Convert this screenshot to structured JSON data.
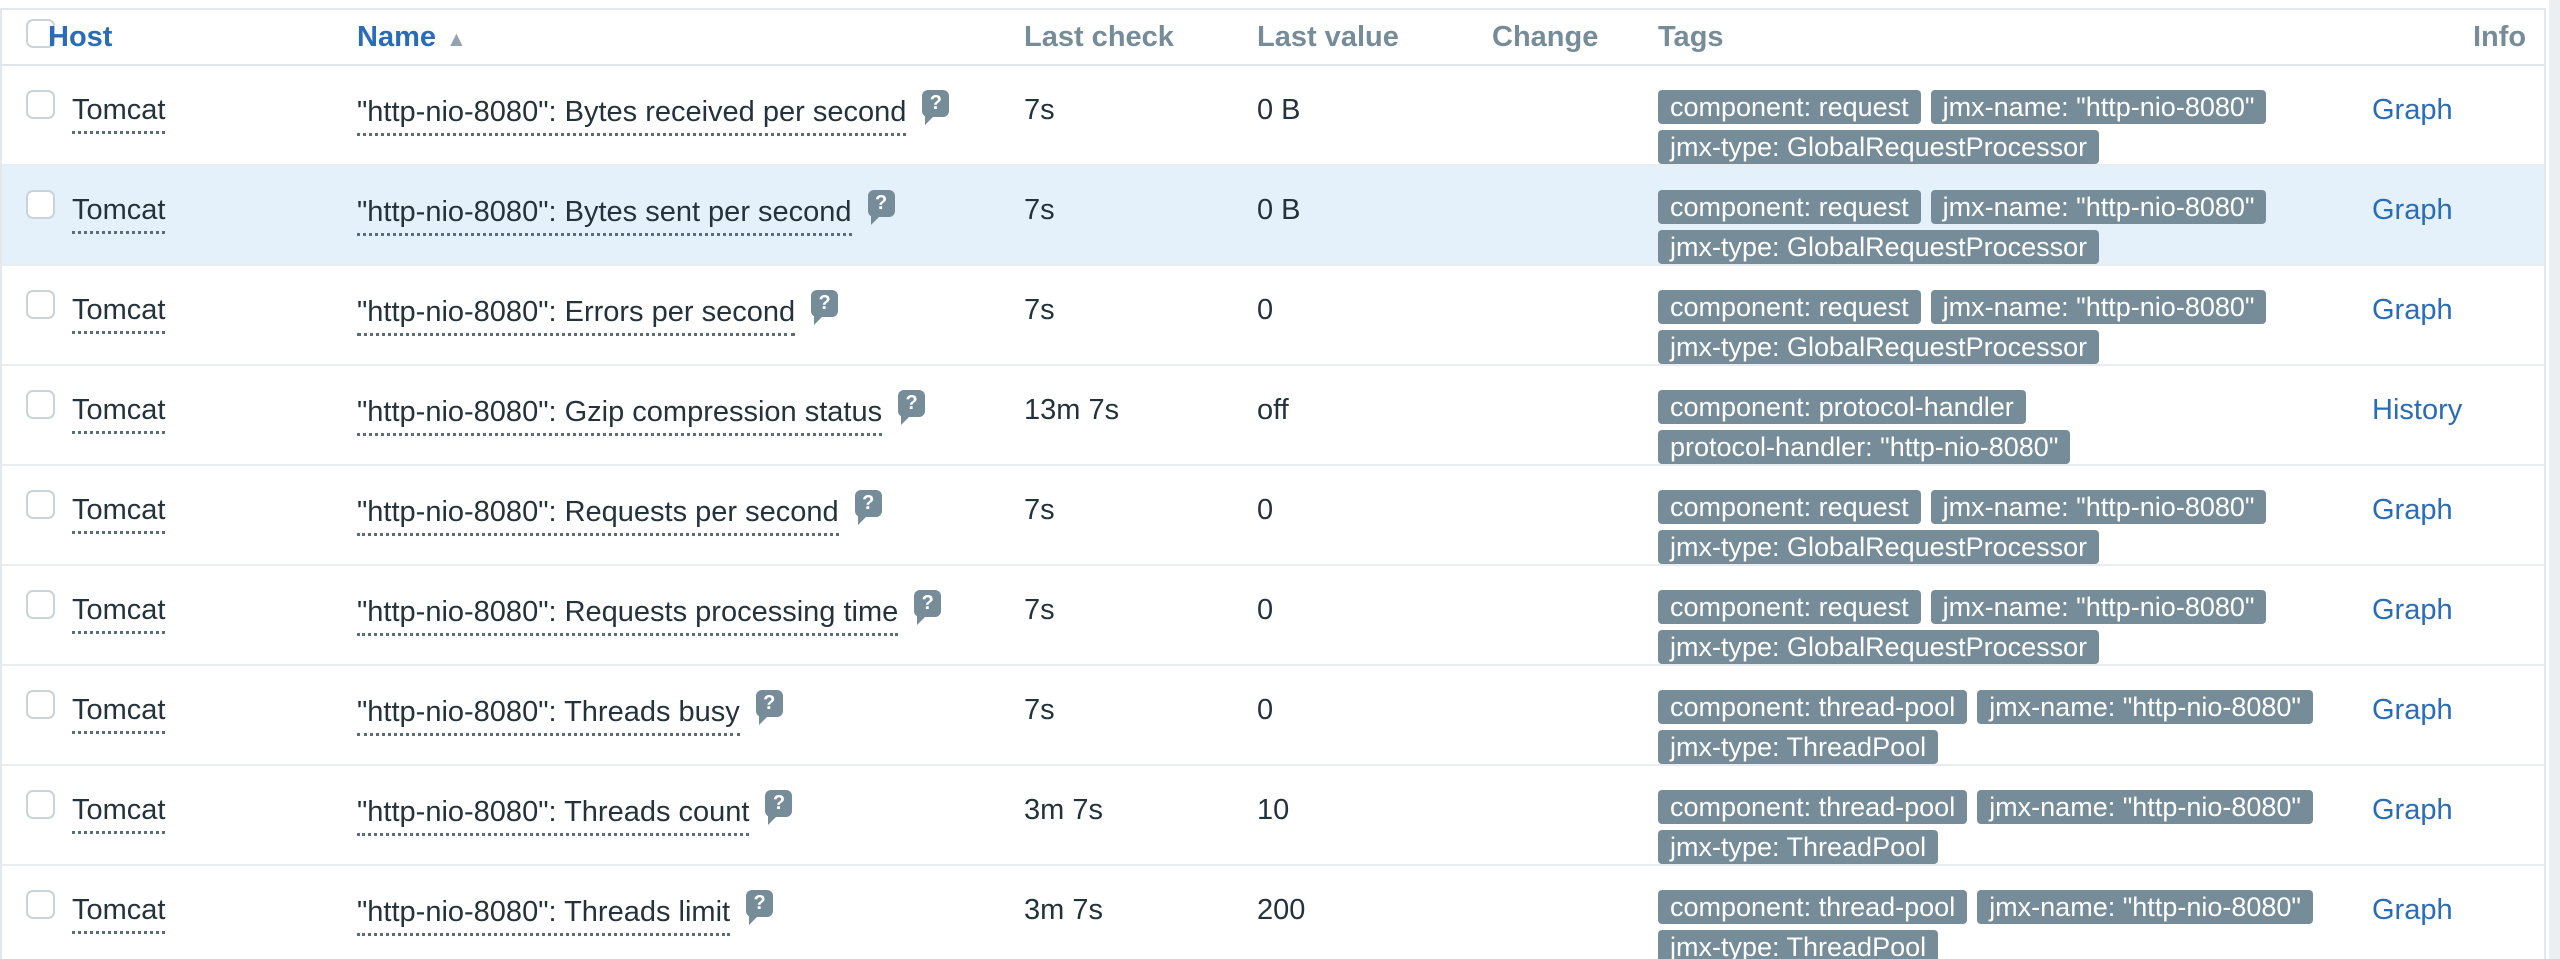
{
  "header": {
    "host": "Host",
    "name": "Name",
    "sort_icon": "▲",
    "last_check": "Last check",
    "last_value": "Last value",
    "change": "Change",
    "tags": "Tags",
    "info": "Info"
  },
  "icons": {
    "help": "?"
  },
  "colors": {
    "link_blue": "#2a6db6",
    "tag_bg": "#768d99",
    "row_highlight": "#e4f1fb",
    "muted_header": "#768d99",
    "text_dark": "#24323c"
  },
  "rows": [
    {
      "host": "Tomcat",
      "name": "\"http-nio-8080\": Bytes received per second",
      "last_check": "7s",
      "last_value": "0 B",
      "change": "",
      "tags": [
        "component: request",
        "jmx-name: \"http-nio-8080\"",
        "jmx-type: GlobalRequestProcessor"
      ],
      "action": "Graph",
      "highlighted": false
    },
    {
      "host": "Tomcat",
      "name": "\"http-nio-8080\": Bytes sent per second",
      "last_check": "7s",
      "last_value": "0 B",
      "change": "",
      "tags": [
        "component: request",
        "jmx-name: \"http-nio-8080\"",
        "jmx-type: GlobalRequestProcessor"
      ],
      "action": "Graph",
      "highlighted": true
    },
    {
      "host": "Tomcat",
      "name": "\"http-nio-8080\": Errors per second",
      "last_check": "7s",
      "last_value": "0",
      "change": "",
      "tags": [
        "component: request",
        "jmx-name: \"http-nio-8080\"",
        "jmx-type: GlobalRequestProcessor"
      ],
      "action": "Graph",
      "highlighted": false
    },
    {
      "host": "Tomcat",
      "name": "\"http-nio-8080\": Gzip compression status",
      "last_check": "13m 7s",
      "last_value": "off",
      "change": "",
      "tags": [
        "component: protocol-handler",
        "protocol-handler: \"http-nio-8080\""
      ],
      "action": "History",
      "highlighted": false
    },
    {
      "host": "Tomcat",
      "name": "\"http-nio-8080\": Requests per second",
      "last_check": "7s",
      "last_value": "0",
      "change": "",
      "tags": [
        "component: request",
        "jmx-name: \"http-nio-8080\"",
        "jmx-type: GlobalRequestProcessor"
      ],
      "action": "Graph",
      "highlighted": false
    },
    {
      "host": "Tomcat",
      "name": "\"http-nio-8080\": Requests processing time",
      "last_check": "7s",
      "last_value": "0",
      "change": "",
      "tags": [
        "component: request",
        "jmx-name: \"http-nio-8080\"",
        "jmx-type: GlobalRequestProcessor"
      ],
      "action": "Graph",
      "highlighted": false
    },
    {
      "host": "Tomcat",
      "name": "\"http-nio-8080\": Threads busy",
      "last_check": "7s",
      "last_value": "0",
      "change": "",
      "tags": [
        "component: thread-pool",
        "jmx-name: \"http-nio-8080\"",
        "jmx-type: ThreadPool"
      ],
      "action": "Graph",
      "highlighted": false
    },
    {
      "host": "Tomcat",
      "name": "\"http-nio-8080\": Threads count",
      "last_check": "3m 7s",
      "last_value": "10",
      "change": "",
      "tags": [
        "component: thread-pool",
        "jmx-name: \"http-nio-8080\"",
        "jmx-type: ThreadPool"
      ],
      "action": "Graph",
      "highlighted": false
    },
    {
      "host": "Tomcat",
      "name": "\"http-nio-8080\": Threads limit",
      "last_check": "3m 7s",
      "last_value": "200",
      "change": "",
      "tags": [
        "component: thread-pool",
        "jmx-name: \"http-nio-8080\"",
        "jmx-type: ThreadPool"
      ],
      "action": "Graph",
      "highlighted": false
    }
  ]
}
